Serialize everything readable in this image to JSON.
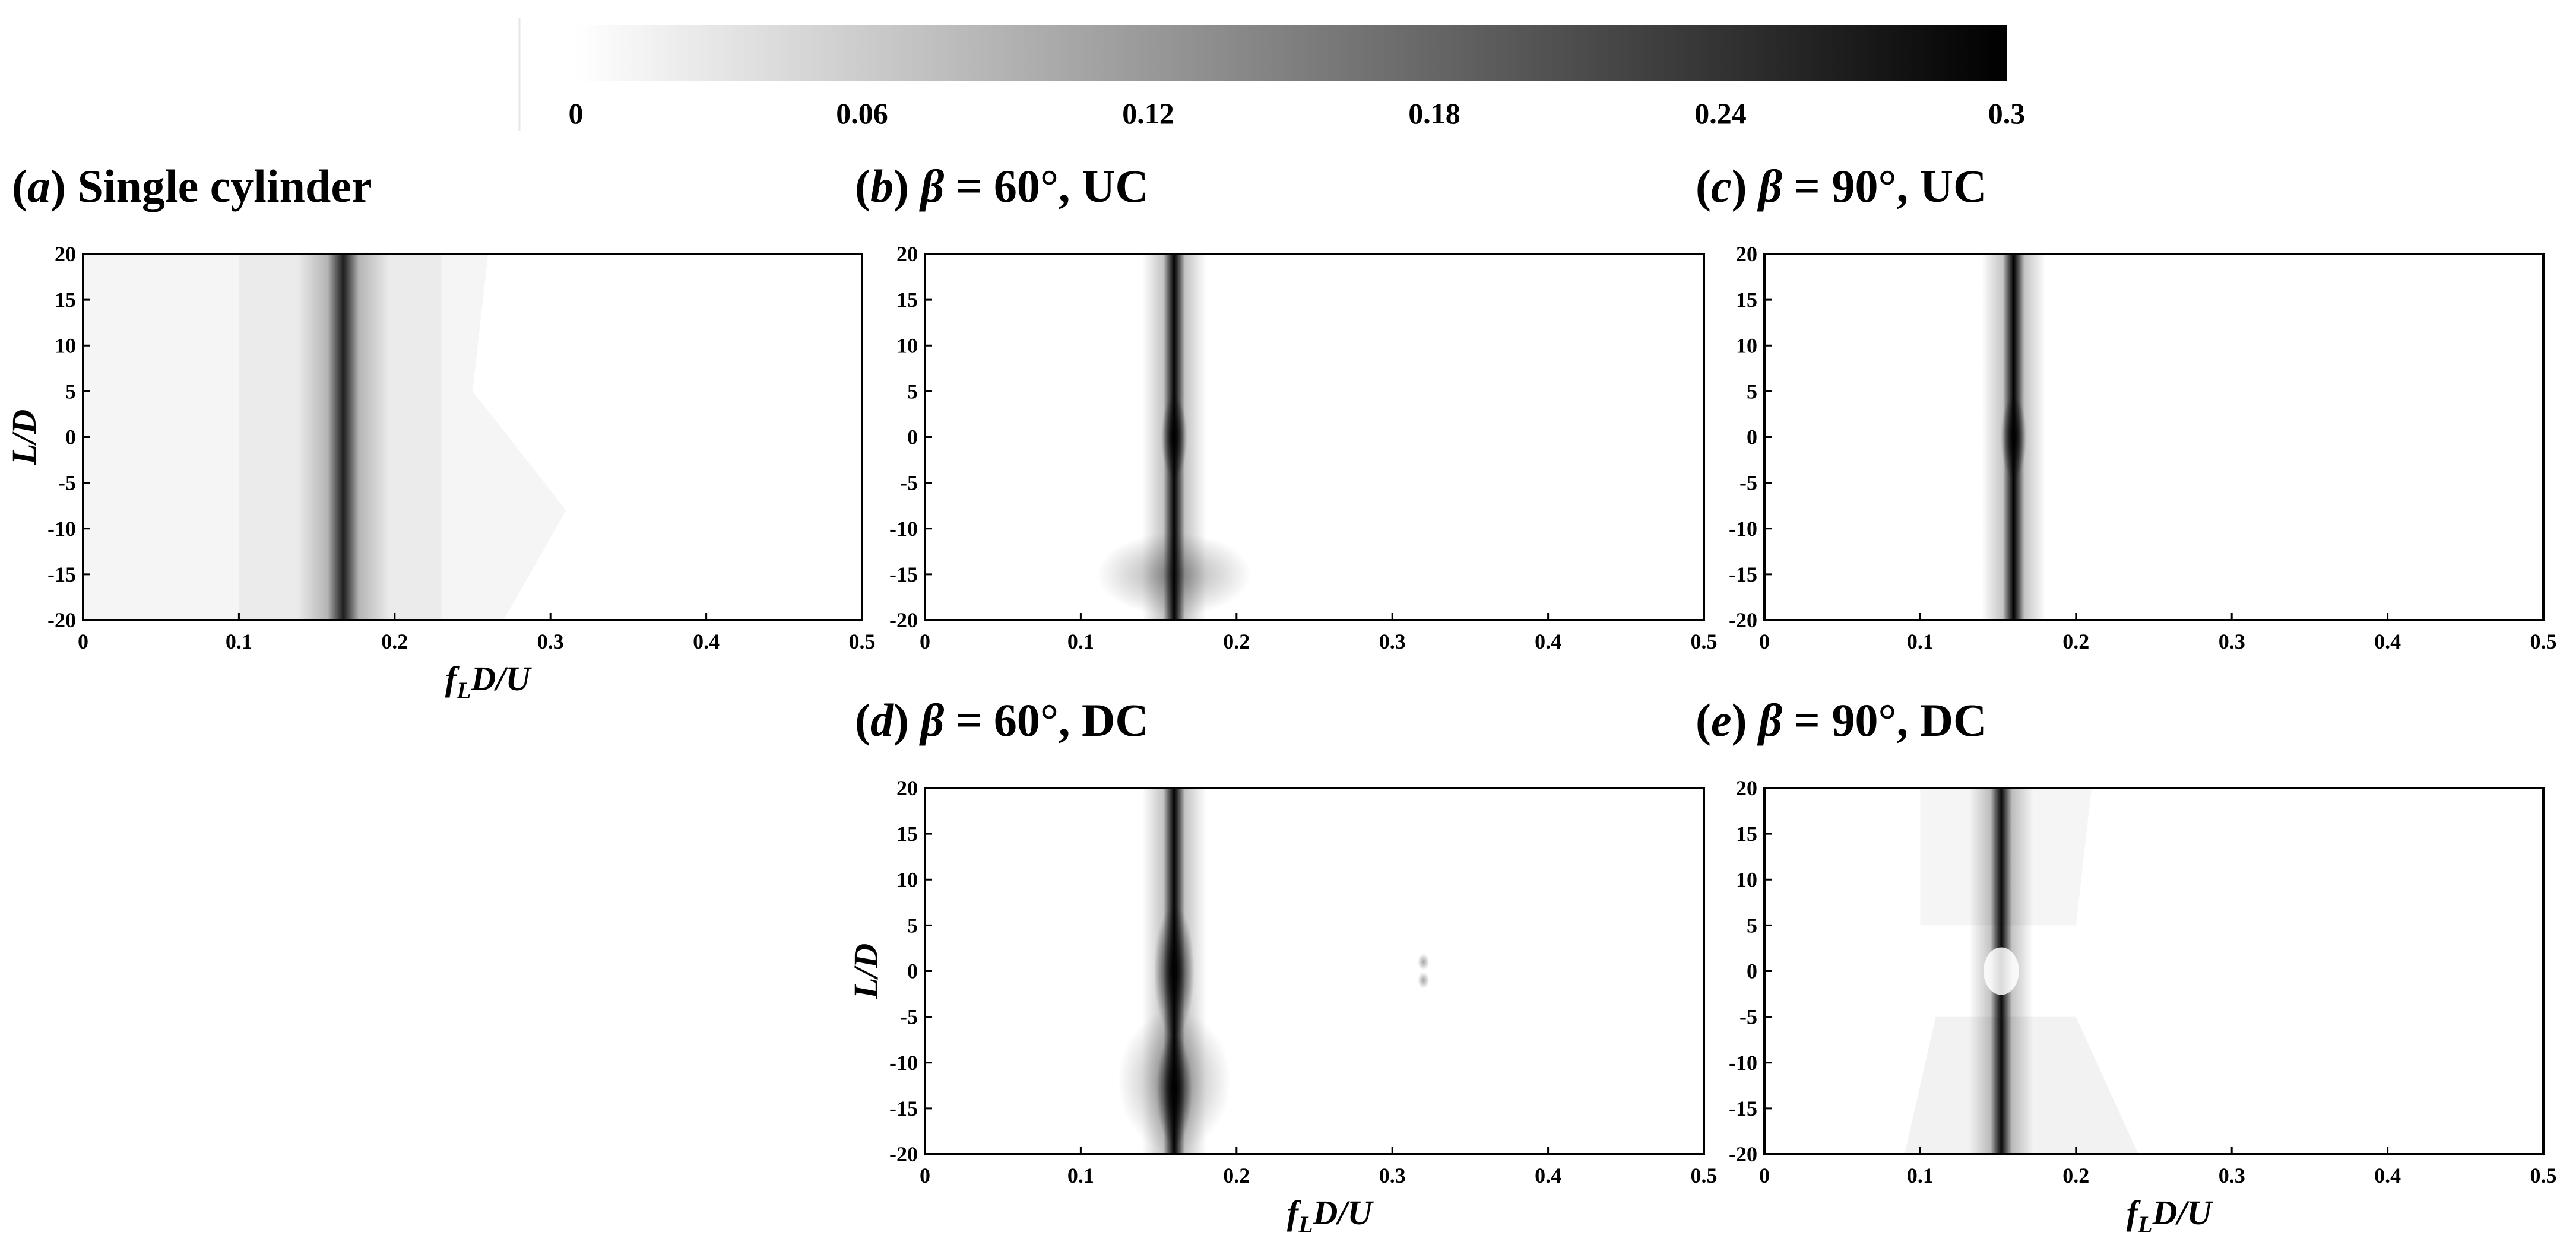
{
  "colorbar": {
    "range": [
      0,
      0.3
    ],
    "ticks": [
      "0",
      "0.06",
      "0.12",
      "0.18",
      "0.24",
      "0.3"
    ],
    "colors": [
      "#ffffff",
      "#000000"
    ]
  },
  "chart_data": [
    {
      "id": "a",
      "type": "heatmap",
      "title": "(a) Single cylinder",
      "xlabel": "fLD/U",
      "ylabel": "L/D",
      "xlim": [
        0,
        0.5
      ],
      "ylim": [
        -20,
        20
      ],
      "xticks": [
        "0",
        "0.1",
        "0.2",
        "0.3",
        "0.4",
        "0.5"
      ],
      "yticks": [
        "20",
        "15",
        "10",
        "5",
        "0",
        "-5",
        "-10",
        "-15",
        "-20"
      ],
      "ridge": [
        {
          "y": -20,
          "f": 0.168
        },
        {
          "y": 0,
          "f": 0.167
        },
        {
          "y": 20,
          "f": 0.166
        }
      ],
      "ridge_level": 0.24
    },
    {
      "id": "b",
      "type": "heatmap",
      "title": "(b) β = 60°, UC",
      "xlabel": "",
      "ylabel": "",
      "xlim": [
        0,
        0.5
      ],
      "ylim": [
        -20,
        20
      ],
      "xticks": [
        "0",
        "0.1",
        "0.2",
        "0.3",
        "0.4",
        "0.5"
      ],
      "yticks": [
        "20",
        "15",
        "10",
        "5",
        "0",
        "-5",
        "-10",
        "-15",
        "-20"
      ],
      "ridge": [
        {
          "y": -20,
          "f": 0.16
        },
        {
          "y": 0,
          "f": 0.16
        },
        {
          "y": 20,
          "f": 0.16
        }
      ],
      "ridge_level": 0.3
    },
    {
      "id": "c",
      "type": "heatmap",
      "title": "(c) β = 90°, UC",
      "xlabel": "",
      "ylabel": "",
      "xlim": [
        0,
        0.5
      ],
      "ylim": [
        -20,
        20
      ],
      "xticks": [
        "0",
        "0.1",
        "0.2",
        "0.3",
        "0.4",
        "0.5"
      ],
      "yticks": [
        "20",
        "15",
        "10",
        "5",
        "0",
        "-5",
        "-10",
        "-15",
        "-20"
      ],
      "ridge": [
        {
          "y": -20,
          "f": 0.16
        },
        {
          "y": 0,
          "f": 0.16
        },
        {
          "y": 20,
          "f": 0.16
        }
      ],
      "ridge_level": 0.3
    },
    {
      "id": "d",
      "type": "heatmap",
      "title": "(d) β = 60°, DC",
      "xlabel": "fLD/U",
      "ylabel": "L/D",
      "xlim": [
        0,
        0.5
      ],
      "ylim": [
        -20,
        20
      ],
      "xticks": [
        "0",
        "0.1",
        "0.2",
        "0.3",
        "0.4",
        "0.5"
      ],
      "yticks": [
        "20",
        "15",
        "10",
        "5",
        "0",
        "-5",
        "-10",
        "-15",
        "-20"
      ],
      "ridge": [
        {
          "y": -20,
          "f": 0.16
        },
        {
          "y": 0,
          "f": 0.16
        },
        {
          "y": 20,
          "f": 0.16
        }
      ],
      "ridge_level": 0.3
    },
    {
      "id": "e",
      "type": "heatmap",
      "title": "(e) β = 90°, DC",
      "xlabel": "fLD/U",
      "ylabel": "",
      "xlim": [
        0,
        0.5
      ],
      "ylim": [
        -20,
        20
      ],
      "xticks": [
        "0",
        "0.1",
        "0.2",
        "0.3",
        "0.4",
        "0.5"
      ],
      "yticks": [
        "20",
        "15",
        "10",
        "5",
        "0",
        "-5",
        "-10",
        "-15",
        "-20"
      ],
      "ridge": [
        {
          "y": -20,
          "f": 0.152
        },
        {
          "y": 0,
          "f": 0.152
        },
        {
          "y": 20,
          "f": 0.152
        }
      ],
      "ridge_level": 0.28
    }
  ]
}
